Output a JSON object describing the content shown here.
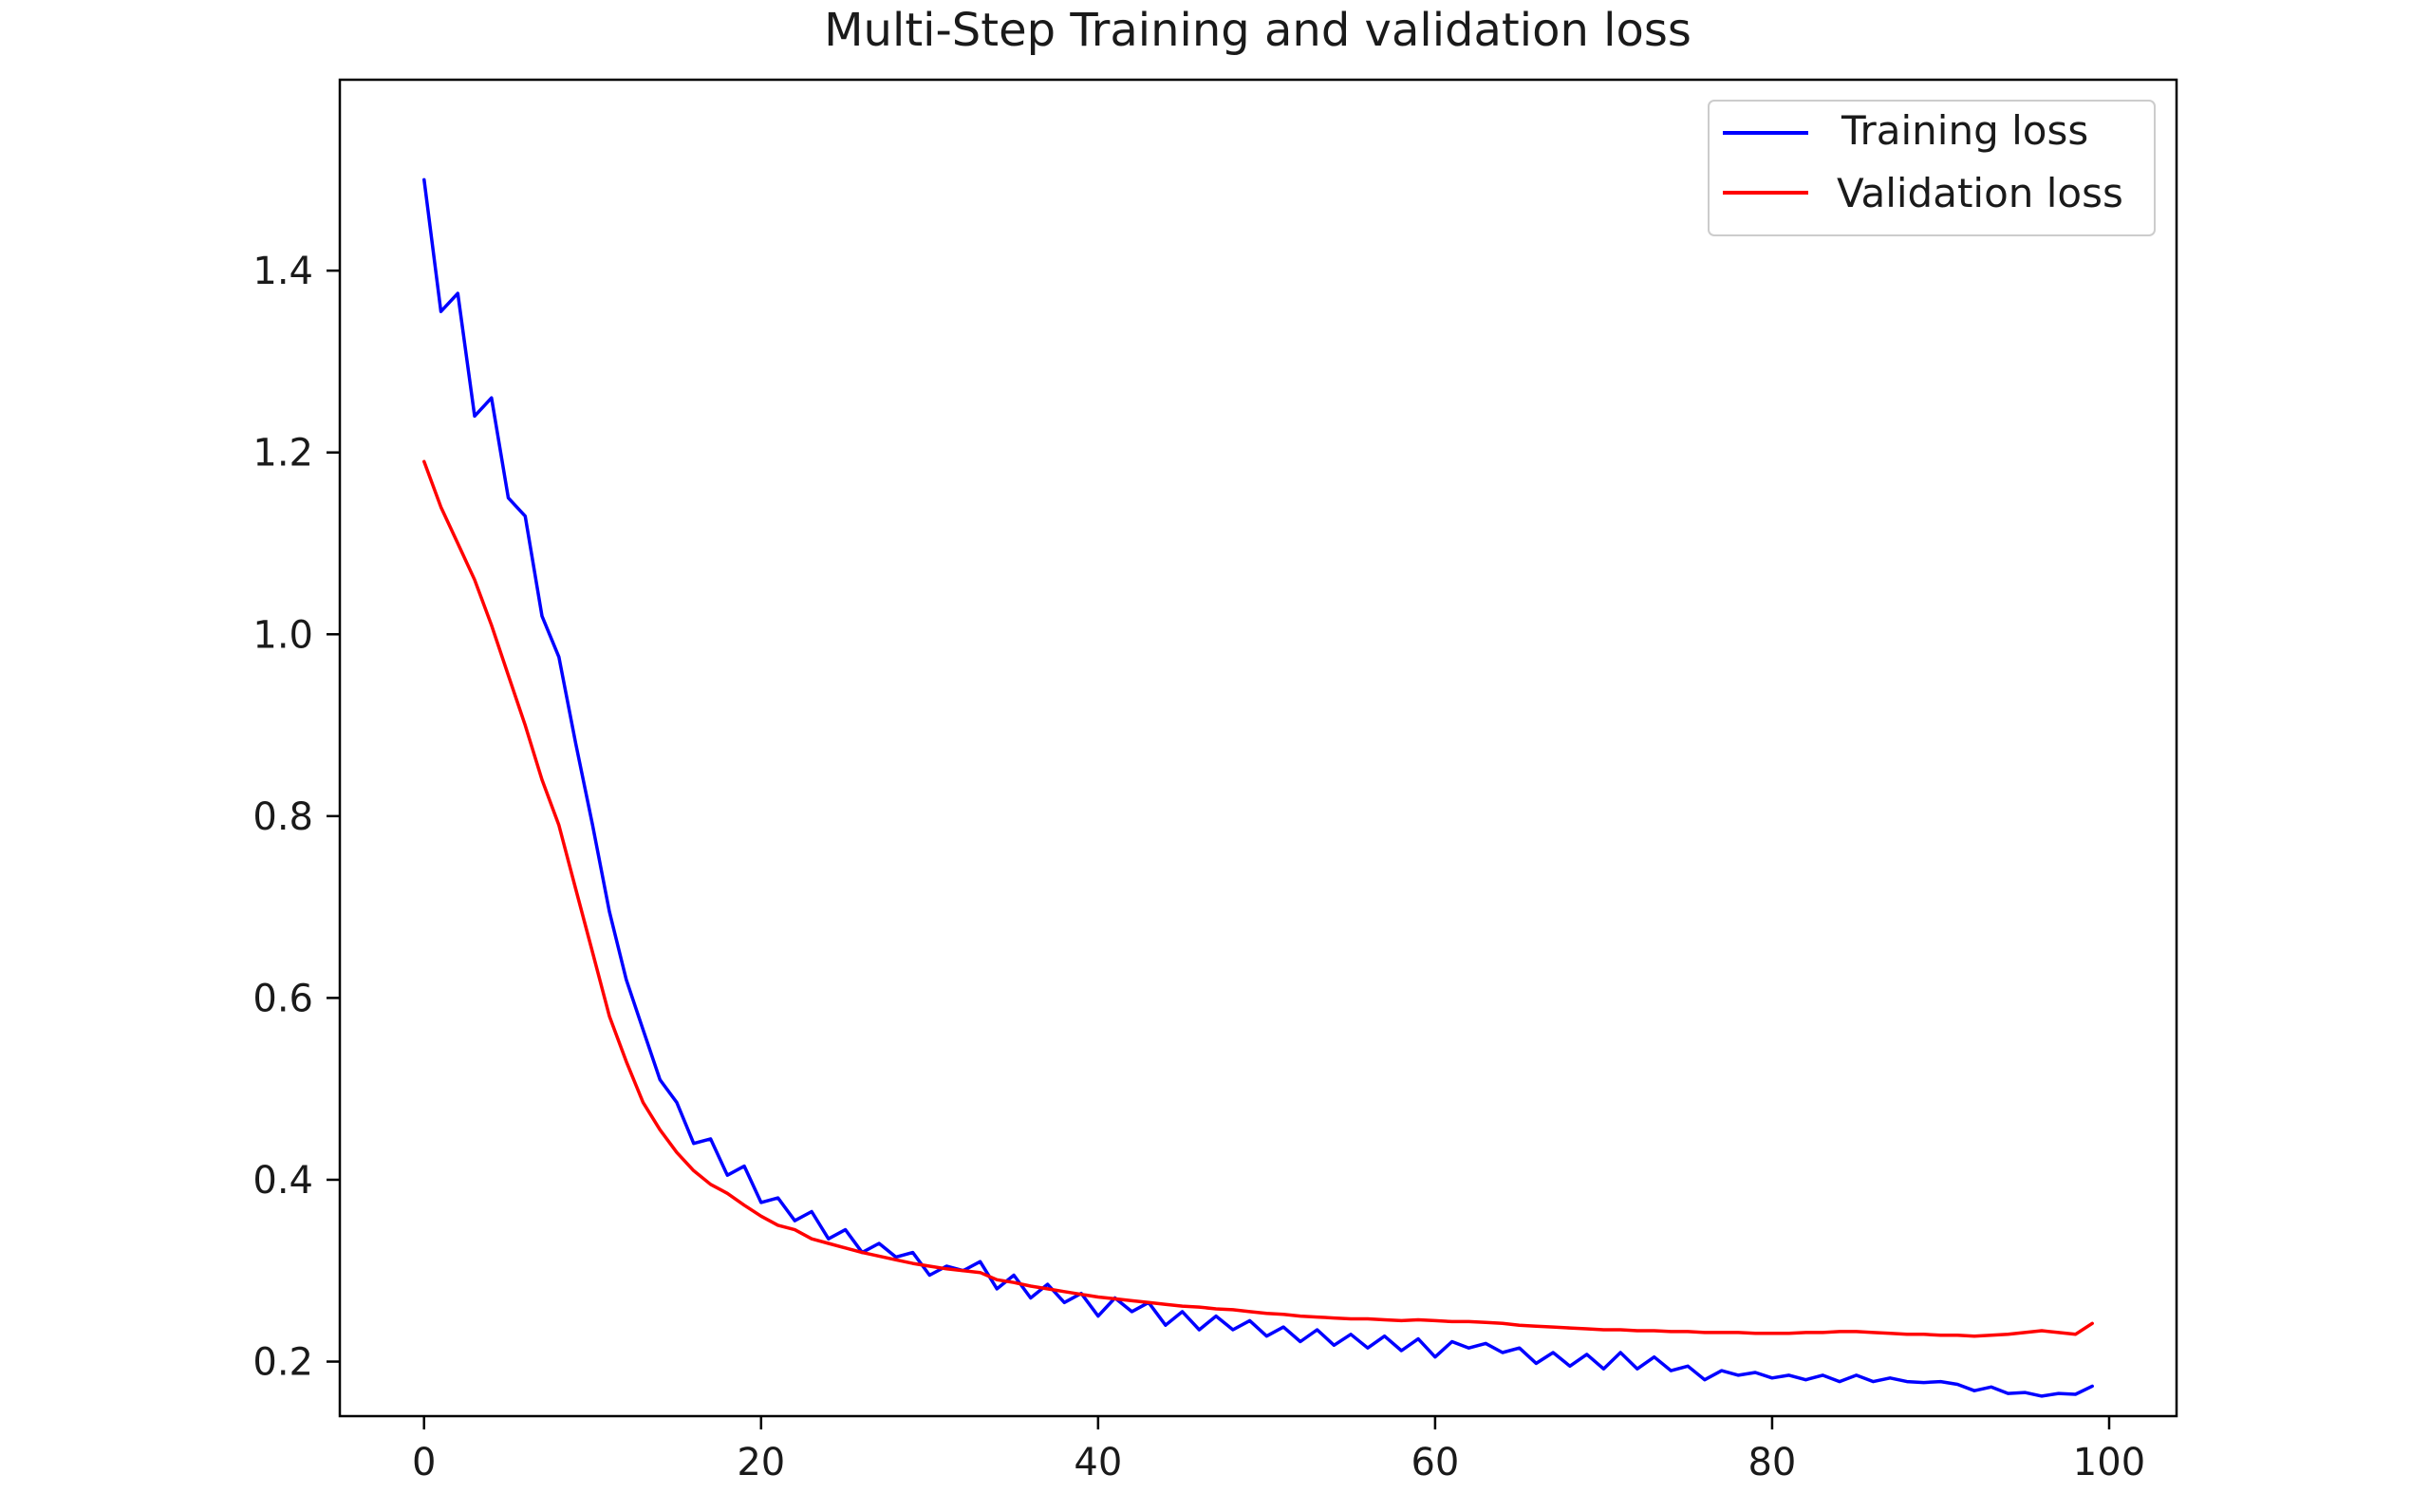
{
  "chart_data": {
    "type": "line",
    "title": "Multi-Step Training and validation loss",
    "xlabel": "",
    "ylabel": "",
    "xlim": [
      -5,
      104
    ],
    "ylim": [
      0.14,
      1.61
    ],
    "x_ticks": [
      0,
      20,
      40,
      60,
      80,
      100
    ],
    "y_ticks": [
      0.2,
      0.4,
      0.6,
      0.8,
      1.0,
      1.2,
      1.4
    ],
    "x_tick_labels": [
      "0",
      "20",
      "40",
      "60",
      "80",
      "100"
    ],
    "y_tick_labels": [
      "0.2",
      "0.4",
      "0.6",
      "0.8",
      "1.0",
      "1.2",
      "1.4"
    ],
    "grid": false,
    "legend_position": "top-right",
    "series": [
      {
        "name": "Training loss",
        "color": "#0000ff",
        "values": [
          1.5,
          1.355,
          1.375,
          1.24,
          1.26,
          1.15,
          1.13,
          1.02,
          0.975,
          0.88,
          0.79,
          0.695,
          0.62,
          0.565,
          0.51,
          0.485,
          0.44,
          0.445,
          0.405,
          0.415,
          0.375,
          0.38,
          0.355,
          0.365,
          0.335,
          0.345,
          0.32,
          0.33,
          0.315,
          0.32,
          0.295,
          0.305,
          0.3,
          0.31,
          0.28,
          0.295,
          0.27,
          0.285,
          0.265,
          0.275,
          0.25,
          0.27,
          0.255,
          0.265,
          0.24,
          0.255,
          0.235,
          0.25,
          0.235,
          0.245,
          0.228,
          0.238,
          0.222,
          0.235,
          0.218,
          0.23,
          0.215,
          0.228,
          0.212,
          0.225,
          0.205,
          0.222,
          0.215,
          0.22,
          0.21,
          0.215,
          0.198,
          0.21,
          0.195,
          0.208,
          0.192,
          0.21,
          0.192,
          0.205,
          0.19,
          0.195,
          0.18,
          0.19,
          0.185,
          0.188,
          0.182,
          0.185,
          0.18,
          0.185,
          0.178,
          0.185,
          0.178,
          0.182,
          0.178,
          0.177,
          0.178,
          0.175,
          0.168,
          0.172,
          0.165,
          0.166,
          0.162,
          0.165,
          0.164,
          0.173
        ]
      },
      {
        "name": "Validation loss",
        "color": "#ff0000",
        "values": [
          1.19,
          1.14,
          1.1,
          1.06,
          1.01,
          0.955,
          0.9,
          0.84,
          0.79,
          0.72,
          0.65,
          0.58,
          0.53,
          0.485,
          0.455,
          0.43,
          0.41,
          0.395,
          0.385,
          0.372,
          0.36,
          0.35,
          0.345,
          0.335,
          0.33,
          0.325,
          0.32,
          0.316,
          0.312,
          0.308,
          0.305,
          0.302,
          0.3,
          0.298,
          0.29,
          0.287,
          0.283,
          0.28,
          0.277,
          0.274,
          0.271,
          0.269,
          0.267,
          0.265,
          0.263,
          0.261,
          0.26,
          0.258,
          0.257,
          0.255,
          0.253,
          0.252,
          0.25,
          0.249,
          0.248,
          0.247,
          0.247,
          0.246,
          0.245,
          0.246,
          0.245,
          0.244,
          0.244,
          0.243,
          0.242,
          0.24,
          0.239,
          0.238,
          0.237,
          0.236,
          0.235,
          0.235,
          0.234,
          0.234,
          0.233,
          0.233,
          0.232,
          0.232,
          0.232,
          0.231,
          0.231,
          0.231,
          0.232,
          0.232,
          0.233,
          0.233,
          0.232,
          0.231,
          0.23,
          0.23,
          0.229,
          0.229,
          0.228,
          0.229,
          0.23,
          0.232,
          0.234,
          0.232,
          0.23,
          0.242
        ]
      }
    ]
  }
}
